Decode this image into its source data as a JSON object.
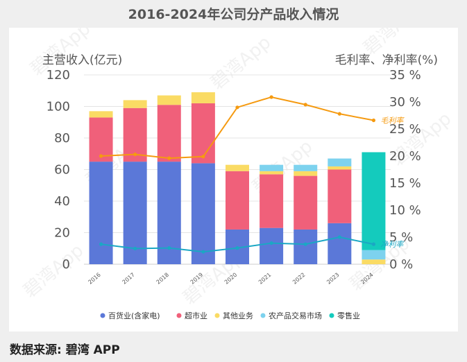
{
  "title": "2016-2024年公司分产品收入情况",
  "source": "数据来源: 碧湾 APP",
  "watermark": "碧湾App",
  "chart_data": {
    "type": "bar",
    "stacked": true,
    "categories": [
      "2016",
      "2017",
      "2018",
      "2019",
      "2020",
      "2021",
      "2022",
      "2023",
      "2024"
    ],
    "ylabel_left": "主营收入(亿元)",
    "ylabel_right": "毛利率、净利率(%)",
    "ylim_left": [
      0,
      120
    ],
    "yticks_left": [
      "0",
      "20",
      "40",
      "60",
      "80",
      "100",
      "120"
    ],
    "ylim_right": [
      0,
      35
    ],
    "yticks_right": [
      "0 %",
      "5 %",
      "10 %",
      "15 %",
      "20 %",
      "25 %",
      "30 %",
      "35 %"
    ],
    "series": [
      {
        "name": "百货业(含家电)",
        "color": "#5b78d8",
        "values": [
          65,
          65,
          65,
          64,
          22,
          23,
          22,
          26,
          0
        ]
      },
      {
        "name": "超市业",
        "color": "#f0607a",
        "values": [
          28,
          34,
          36,
          38,
          37,
          34,
          34,
          34,
          0
        ]
      },
      {
        "name": "其他业务",
        "color": "#fadb64",
        "values": [
          4,
          5,
          6,
          7,
          4,
          2,
          3,
          2,
          3
        ]
      },
      {
        "name": "农产品交易市场",
        "color": "#7dd2ee",
        "values": [
          0,
          0,
          0,
          0,
          0,
          4,
          4,
          5,
          6
        ]
      },
      {
        "name": "零售业",
        "color": "#14cbbd",
        "values": [
          0,
          0,
          0,
          0,
          0,
          0,
          0,
          0,
          62
        ]
      }
    ],
    "lines": [
      {
        "name": "毛利率",
        "color": "#f59a10",
        "axis": "right",
        "values": [
          20.0,
          20.3,
          19.6,
          19.9,
          29.0,
          30.9,
          29.5,
          27.8,
          26.6
        ]
      },
      {
        "name": "净利率",
        "color": "#1ba7c4",
        "axis": "right",
        "values": [
          3.7,
          2.9,
          3.0,
          2.3,
          3.0,
          3.9,
          3.7,
          5.0,
          3.7
        ]
      }
    ],
    "legend_position": "bottom"
  }
}
